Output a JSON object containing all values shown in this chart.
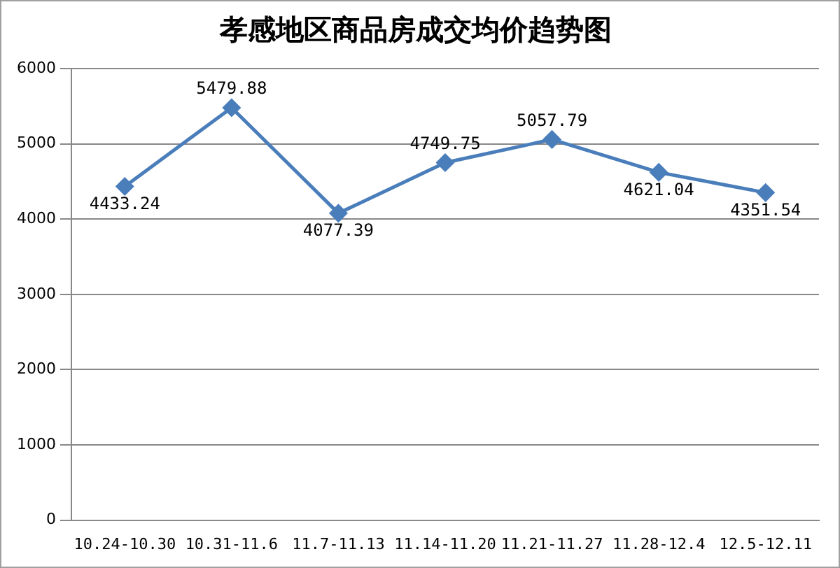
{
  "chart_data": {
    "type": "line",
    "title": "孝感地区商品房成交均价趋势图",
    "categories": [
      "10.24-10.30",
      "10.31-11.6",
      "11.7-11.13",
      "11.14-11.20",
      "11.21-11.27",
      "11.28-12.4",
      "12.5-12.11"
    ],
    "series": [
      {
        "color": "#4a7ebb",
        "values": [
          4433.24,
          5479.88,
          4077.39,
          4749.75,
          5057.79,
          4621.04,
          4351.54
        ]
      }
    ],
    "ylim": [
      0,
      6000
    ],
    "yticks": [
      0,
      1000,
      2000,
      3000,
      4000,
      5000,
      6000
    ],
    "grid": "y",
    "legend": false,
    "marker": "diamond",
    "line_style": "solid",
    "data_labels": true
  }
}
